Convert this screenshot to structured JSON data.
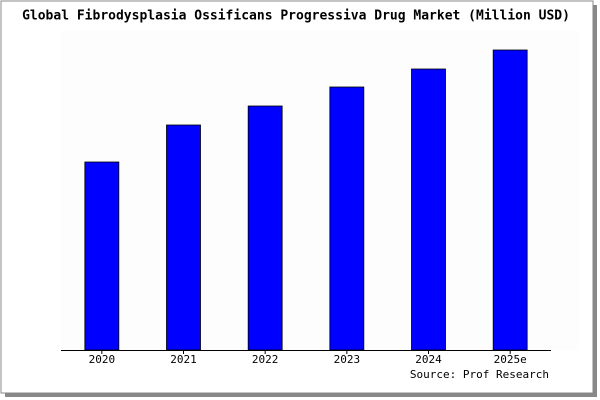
{
  "chart_data": {
    "type": "bar",
    "title": "Global Fibrodysplasia Ossificans Progressiva Drug Market (Million USD)",
    "categories": [
      "2020",
      "2021",
      "2022",
      "2023",
      "2024",
      "2025e"
    ],
    "values": [
      188,
      225,
      244,
      263,
      281,
      300
    ],
    "color": "#0000ff",
    "source": "Source: Prof Research"
  }
}
